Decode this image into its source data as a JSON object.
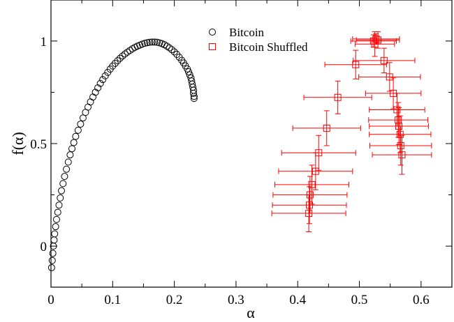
{
  "chart_data": {
    "type": "scatter",
    "xlabel": "α",
    "ylabel": "f(α)",
    "xlim": [
      0,
      0.65
    ],
    "ylim": [
      -0.2,
      1.2
    ],
    "x_ticks": [
      {
        "value": 0,
        "label": "0"
      },
      {
        "value": 0.1,
        "label": "0.1"
      },
      {
        "value": 0.2,
        "label": "0.2"
      },
      {
        "value": 0.3,
        "label": "0.3"
      },
      {
        "value": 0.4,
        "label": "0.4"
      },
      {
        "value": 0.5,
        "label": "0.5"
      },
      {
        "value": 0.6,
        "label": "0.6"
      }
    ],
    "y_ticks": [
      {
        "value": 0,
        "label": "0"
      },
      {
        "value": 0.5,
        "label": "0.5"
      },
      {
        "value": 1,
        "label": "1"
      }
    ],
    "x_minor_step": 0.05,
    "y_minor_step": 0.25,
    "grid": false,
    "legend_position": "top-center",
    "series": [
      {
        "name": "Bitcoin",
        "marker": "circle",
        "color": "#000000",
        "points": [
          [
            0.001,
            -0.105
          ],
          [
            0.002,
            -0.07
          ],
          [
            0.003,
            -0.035
          ],
          [
            0.004,
            0.0
          ],
          [
            0.005,
            0.03
          ],
          [
            0.006,
            0.06
          ],
          [
            0.0075,
            0.095
          ],
          [
            0.009,
            0.13
          ],
          [
            0.011,
            0.165
          ],
          [
            0.013,
            0.2
          ],
          [
            0.015,
            0.235
          ],
          [
            0.017,
            0.27
          ],
          [
            0.0195,
            0.305
          ],
          [
            0.022,
            0.34
          ],
          [
            0.025,
            0.375
          ],
          [
            0.028,
            0.41
          ],
          [
            0.031,
            0.445
          ],
          [
            0.034,
            0.475
          ],
          [
            0.037,
            0.505
          ],
          [
            0.04,
            0.535
          ],
          [
            0.044,
            0.565
          ],
          [
            0.048,
            0.595
          ],
          [
            0.052,
            0.625
          ],
          [
            0.056,
            0.652
          ],
          [
            0.06,
            0.678
          ],
          [
            0.064,
            0.703
          ],
          [
            0.068,
            0.727
          ],
          [
            0.072,
            0.75
          ],
          [
            0.076,
            0.772
          ],
          [
            0.08,
            0.793
          ],
          [
            0.084,
            0.812
          ],
          [
            0.088,
            0.83
          ],
          [
            0.092,
            0.847
          ],
          [
            0.096,
            0.863
          ],
          [
            0.1,
            0.878
          ],
          [
            0.104,
            0.891
          ],
          [
            0.108,
            0.904
          ],
          [
            0.112,
            0.916
          ],
          [
            0.116,
            0.927
          ],
          [
            0.12,
            0.937
          ],
          [
            0.124,
            0.946
          ],
          [
            0.128,
            0.954
          ],
          [
            0.132,
            0.962
          ],
          [
            0.136,
            0.969
          ],
          [
            0.14,
            0.975
          ],
          [
            0.144,
            0.98
          ],
          [
            0.148,
            0.985
          ],
          [
            0.152,
            0.989
          ],
          [
            0.156,
            0.992
          ],
          [
            0.16,
            0.994
          ],
          [
            0.164,
            0.995
          ],
          [
            0.168,
            0.995
          ],
          [
            0.172,
            0.994
          ],
          [
            0.176,
            0.991
          ],
          [
            0.18,
            0.987
          ],
          [
            0.184,
            0.982
          ],
          [
            0.188,
            0.975
          ],
          [
            0.192,
            0.967
          ],
          [
            0.196,
            0.958
          ],
          [
            0.2,
            0.947
          ],
          [
            0.204,
            0.935
          ],
          [
            0.208,
            0.921
          ],
          [
            0.212,
            0.906
          ],
          [
            0.215,
            0.893
          ],
          [
            0.218,
            0.879
          ],
          [
            0.221,
            0.864
          ],
          [
            0.223,
            0.85
          ],
          [
            0.225,
            0.835
          ],
          [
            0.227,
            0.82
          ],
          [
            0.228,
            0.805
          ],
          [
            0.229,
            0.79
          ],
          [
            0.23,
            0.775
          ],
          [
            0.231,
            0.76
          ],
          [
            0.231,
            0.745
          ],
          [
            0.232,
            0.73
          ],
          [
            0.232,
            0.72
          ]
        ]
      },
      {
        "name": "Bitcoin Shuffled",
        "marker": "square",
        "color": "#ff0000",
        "points": [
          [
            0.527,
            1.01,
            0.038,
            0.025
          ],
          [
            0.523,
            1.0,
            0.037,
            0.03
          ],
          [
            0.53,
            1.005,
            0.035,
            0.04
          ],
          [
            0.525,
            0.985,
            0.032,
            0.06
          ],
          [
            0.54,
            0.905,
            0.05,
            0.06
          ],
          [
            0.494,
            0.885,
            0.05,
            0.07
          ],
          [
            0.549,
            0.825,
            0.05,
            0.07
          ],
          [
            0.555,
            0.745,
            0.045,
            0.075
          ],
          [
            0.465,
            0.725,
            0.055,
            0.08
          ],
          [
            0.561,
            0.665,
            0.045,
            0.08
          ],
          [
            0.563,
            0.615,
            0.048,
            0.085
          ],
          [
            0.564,
            0.585,
            0.048,
            0.09
          ],
          [
            0.447,
            0.575,
            0.055,
            0.085
          ],
          [
            0.566,
            0.545,
            0.05,
            0.09
          ],
          [
            0.567,
            0.49,
            0.05,
            0.095
          ],
          [
            0.569,
            0.445,
            0.048,
            0.095
          ],
          [
            0.434,
            0.455,
            0.06,
            0.085
          ],
          [
            0.429,
            0.365,
            0.06,
            0.09
          ],
          [
            0.423,
            0.3,
            0.06,
            0.095
          ],
          [
            0.42,
            0.25,
            0.06,
            0.09
          ],
          [
            0.419,
            0.2,
            0.06,
            0.09
          ],
          [
            0.418,
            0.16,
            0.06,
            0.09
          ]
        ]
      }
    ]
  }
}
